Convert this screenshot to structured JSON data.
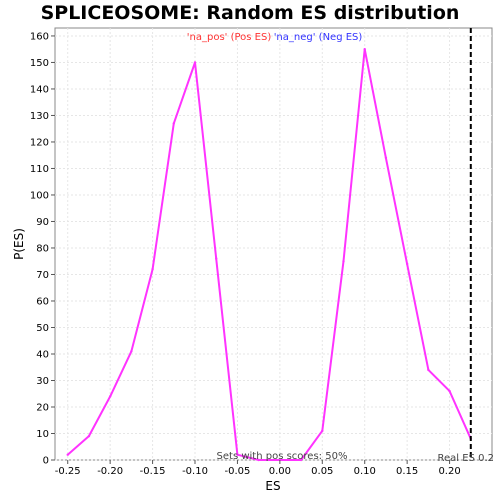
{
  "chart_data": {
    "type": "line",
    "title": "SPLICEOSOME: Random ES distribution",
    "xlabel": "ES",
    "ylabel": "P(ES)",
    "xlim": [
      -0.265,
      0.25
    ],
    "ylim": [
      0,
      163
    ],
    "grid": true,
    "x_ticks": [
      "-0.25",
      "-0.20",
      "-0.15",
      "-0.10",
      "-0.05",
      "0.00",
      "0.05",
      "0.10",
      "0.15",
      "0.20"
    ],
    "x_tick_values": [
      -0.25,
      -0.2,
      -0.15,
      -0.1,
      -0.05,
      0.0,
      0.05,
      0.1,
      0.15,
      0.2
    ],
    "y_ticks": [
      0,
      10,
      20,
      30,
      40,
      50,
      60,
      70,
      80,
      90,
      100,
      110,
      120,
      130,
      140,
      150,
      160
    ],
    "legend": [
      {
        "label": "'na_pos' (Pos ES)",
        "color": "#ff3333"
      },
      {
        "label": "'na_neg' (Neg ES)",
        "color": "#3333ff"
      }
    ],
    "series": [
      {
        "color": "#ff33ff",
        "x": [
          -0.25,
          -0.225,
          -0.2,
          -0.175,
          -0.15,
          -0.125,
          -0.1,
          -0.075,
          -0.05,
          -0.025,
          0.0,
          0.025,
          0.05,
          0.075,
          0.1,
          0.125,
          0.15,
          0.175,
          0.2,
          0.225
        ],
        "y": [
          2,
          9,
          24,
          41,
          72,
          127,
          150,
          76,
          2,
          0,
          0,
          0,
          11,
          75,
          155,
          114,
          74,
          34,
          26,
          8
        ]
      }
    ],
    "real_es": {
      "x": 0.225,
      "label": "Real ES 0.2"
    },
    "annotation": "Sets with pos scores: 50%"
  }
}
